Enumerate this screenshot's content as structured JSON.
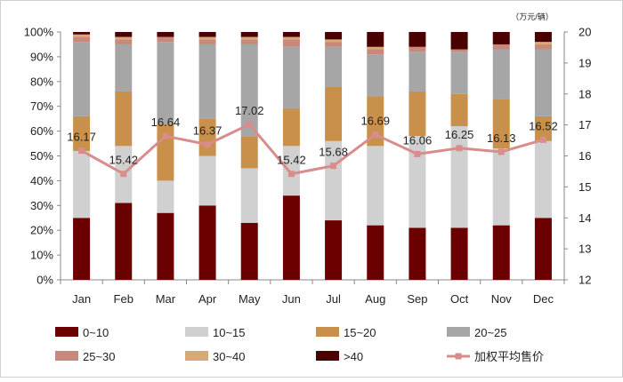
{
  "chart_data": {
    "type": "bar",
    "stacked": true,
    "percent_stacked": true,
    "unit_label": "（万元/辆）",
    "categories": [
      "Jan",
      "Feb",
      "Mar",
      "Apr",
      "May",
      "Jun",
      "Jul",
      "Aug",
      "Sep",
      "Oct",
      "Nov",
      "Dec"
    ],
    "series": [
      {
        "name": "0~10",
        "color": "#6b0000",
        "values": [
          25,
          31,
          27,
          30,
          23,
          34,
          24,
          22,
          21,
          21,
          22,
          25
        ]
      },
      {
        "name": "10~15",
        "color": "#d0d0d0",
        "values": [
          27,
          23,
          13,
          20,
          22,
          20,
          32,
          32,
          37,
          41,
          31,
          31
        ]
      },
      {
        "name": "15~20",
        "color": "#c8904a",
        "values": [
          14,
          22,
          23,
          15,
          13,
          15,
          22,
          20,
          18,
          13,
          20,
          10
        ]
      },
      {
        "name": "20~25",
        "color": "#a6a6a6",
        "values": [
          30,
          19,
          33,
          30,
          37,
          25,
          16,
          17,
          16,
          17,
          20,
          27
        ]
      },
      {
        "name": "25~30",
        "color": "#c8887c",
        "values": [
          2,
          2,
          2,
          2,
          2,
          3,
          2,
          2,
          2,
          1,
          2,
          2
        ]
      },
      {
        "name": "30~40",
        "color": "#d6aa72",
        "values": [
          1,
          1,
          0,
          1,
          1,
          1,
          1,
          1,
          0,
          0,
          0,
          1
        ]
      },
      {
        "name": ">40",
        "color": "#4a0000",
        "values": [
          1,
          2,
          2,
          2,
          2,
          2,
          3,
          6,
          6,
          7,
          5,
          4
        ]
      }
    ],
    "line": {
      "name": "加权平均售价",
      "color": "#d98c8c",
      "values": [
        16.17,
        15.42,
        16.64,
        16.37,
        17.02,
        15.42,
        15.68,
        16.69,
        16.06,
        16.25,
        16.13,
        16.52
      ],
      "labels": [
        "16.17",
        "15.42",
        "16.64",
        "16.37",
        "17.02",
        "15.42",
        "15.68",
        "16.69",
        "16.06",
        "16.25",
        "16.13",
        "16.52"
      ]
    },
    "y_left": {
      "min": 0,
      "max": 100,
      "step": 10,
      "ticks": [
        "0%",
        "10%",
        "20%",
        "30%",
        "40%",
        "50%",
        "60%",
        "70%",
        "80%",
        "90%",
        "100%"
      ]
    },
    "y_right": {
      "min": 12,
      "max": 20,
      "step": 1,
      "ticks": [
        "12",
        "13",
        "14",
        "15",
        "16",
        "17",
        "18",
        "19",
        "20"
      ]
    },
    "legend_position": "bottom"
  }
}
